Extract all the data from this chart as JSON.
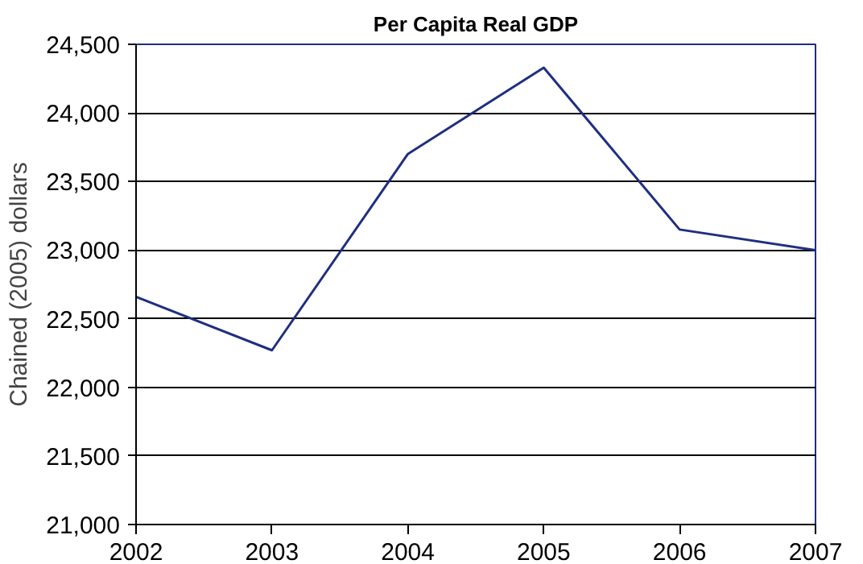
{
  "chart_data": {
    "type": "line",
    "title": "Per Capita Real GDP",
    "ylabel": "Chained (2005) dollars",
    "x": [
      2002,
      2003,
      2004,
      2005,
      2006,
      2007
    ],
    "series": [
      {
        "color": "#1f2f7f",
        "values": [
          22660,
          22270,
          23700,
          24330,
          23150,
          23000
        ]
      }
    ],
    "xlim": [
      2002,
      2007
    ],
    "xticks": [
      2002,
      2003,
      2004,
      2005,
      2006,
      2007
    ],
    "ylim": [
      21000,
      24500
    ],
    "yticks": [
      {
        "value": 21000,
        "label": "21,000"
      },
      {
        "value": 21500,
        "label": "21,500"
      },
      {
        "value": 22000,
        "label": "22,000"
      },
      {
        "value": 22500,
        "label": "22,500"
      },
      {
        "value": 23000,
        "label": "23,000"
      },
      {
        "value": 23500,
        "label": "23,500"
      },
      {
        "value": 24000,
        "label": "24,000"
      },
      {
        "value": 24500,
        "label": "24,500"
      }
    ],
    "grid": "y",
    "marker": "none",
    "line_style": "solid"
  }
}
